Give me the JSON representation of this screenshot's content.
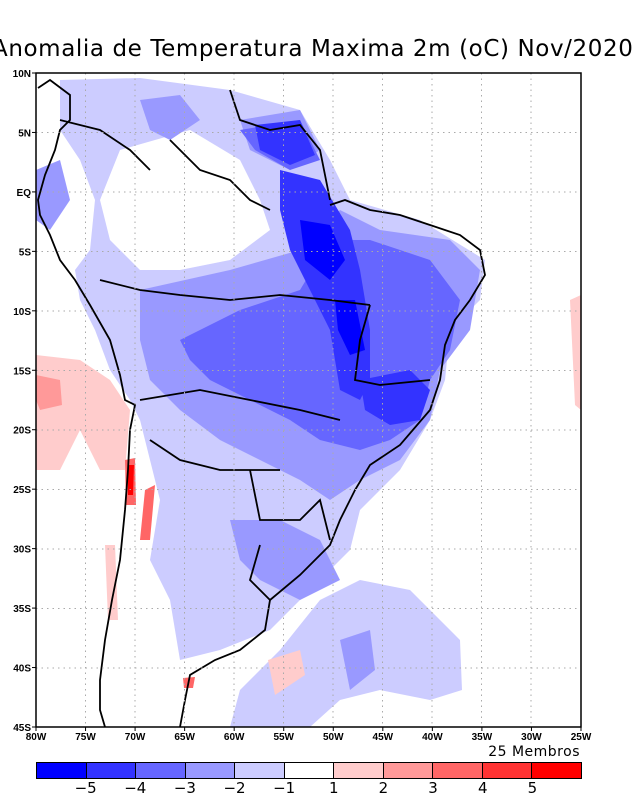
{
  "title": "Anomalia de Temperatura Maxima 2m (oC) Nov/2020",
  "footer_note": "25 Membros",
  "map": {
    "type": "filled-contour-map",
    "variable": "Anomalia de Temperatura Maxima 2m",
    "units": "oC",
    "period": "Nov/2020",
    "lon_range": [
      -80,
      -25
    ],
    "lat_range": [
      -45,
      10
    ],
    "lat_ticks": [
      "10N",
      "5N",
      "EQ",
      "5S",
      "10S",
      "15S",
      "20S",
      "25S",
      "30S",
      "35S",
      "40S",
      "45S"
    ],
    "lon_ticks": [
      "80W",
      "75W",
      "70W",
      "65W",
      "60W",
      "55W",
      "50W",
      "45W",
      "40W",
      "35W",
      "30W",
      "25W"
    ],
    "grid": true
  },
  "colorbar": {
    "labels": [
      "−5",
      "−4",
      "−3",
      "−2",
      "−1",
      "1",
      "2",
      "3",
      "4",
      "5"
    ],
    "colors": [
      "#0000ff",
      "#3333ff",
      "#6666ff",
      "#9999ff",
      "#ccccff",
      "#ffffff",
      "#ffcccc",
      "#ff9999",
      "#ff6666",
      "#ff3333",
      "#ff0000"
    ]
  }
}
